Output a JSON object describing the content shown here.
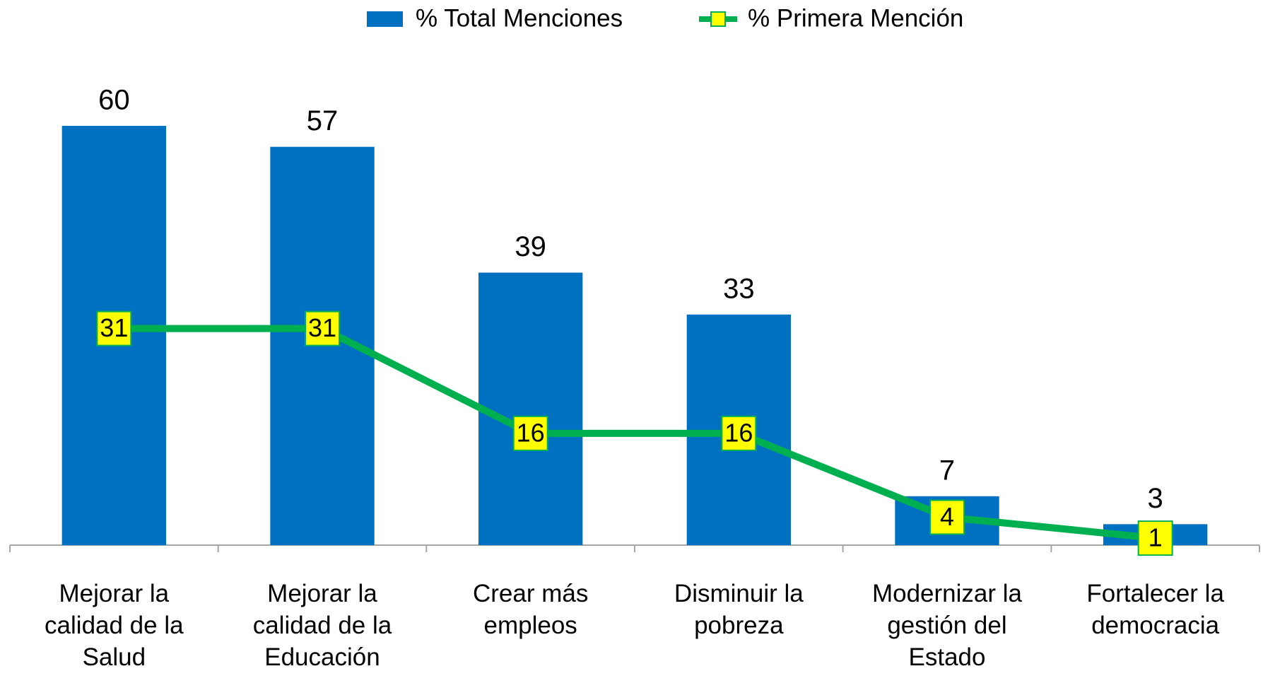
{
  "chart_data": {
    "type": "bar",
    "categories": [
      "Mejorar la calidad de la Salud",
      "Mejorar la calidad de la Educación",
      "Crear más empleos",
      "Disminuir la pobreza",
      "Modernizar la gestión del Estado",
      "Fortalecer la democracia"
    ],
    "series": [
      {
        "name": "% Total Menciones",
        "type": "bar",
        "color": "#0070c0",
        "values": [
          60,
          57,
          39,
          33,
          7,
          3
        ]
      },
      {
        "name": "% Primera Mención",
        "type": "line",
        "color": "#00b050",
        "marker_color": "#ffff00",
        "values": [
          31,
          31,
          16,
          16,
          4,
          1
        ]
      }
    ],
    "ylim": [
      0,
      60
    ],
    "legend": "top"
  }
}
